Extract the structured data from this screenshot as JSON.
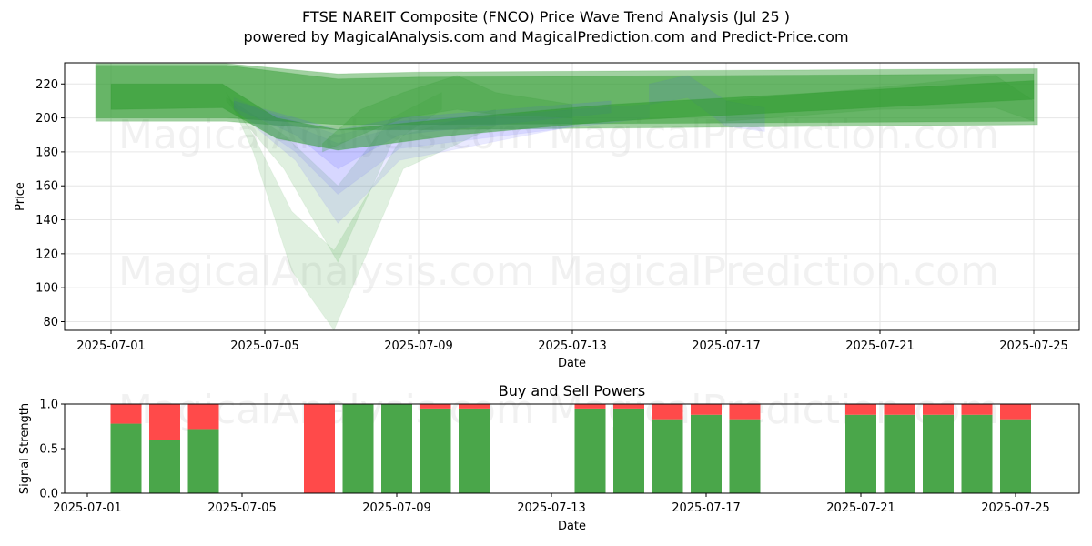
{
  "title": "FTSE NAREIT Composite (FNCO) Price Wave Trend Analysis (Jul 25 )",
  "subtitle": "powered by MagicalAnalysis.com and MagicalPrediction.com and Predict-Price.com",
  "watermarks": [
    "MagicalAnalysis.com",
    "MagicalPrediction.com"
  ],
  "colors": {
    "buy": "#4aa64a",
    "sell": "#ff4a4a",
    "band_green": "#2e9a2e",
    "band_blue": "#5050ff",
    "grid": "#e6e6e6"
  },
  "chart_data": [
    {
      "type": "area",
      "xlabel": "Date",
      "ylabel": "Price",
      "x_ticks": [
        "2025-07-01",
        "2025-07-05",
        "2025-07-09",
        "2025-07-13",
        "2025-07-17",
        "2025-07-21",
        "2025-07-25"
      ],
      "y_ticks": [
        80,
        100,
        120,
        140,
        160,
        180,
        200,
        220
      ],
      "xlim": [
        "2025-06-30",
        "2025-07-26"
      ],
      "ylim": [
        75,
        233
      ],
      "grid": true,
      "series": [
        {
          "color": "green",
          "opacity": 0.45,
          "upper": [
            [
              30.6,
              232
            ],
            [
              34,
              232
            ],
            [
              36.9,
              226
            ],
            [
              39,
              227
            ],
            [
              55.1,
              229
            ]
          ],
          "lower": [
            [
              30.6,
              198
            ],
            [
              34,
              198
            ],
            [
              36.9,
              193
            ],
            [
              39,
              193
            ],
            [
              55.1,
              196
            ]
          ]
        },
        {
          "color": "green",
          "opacity": 0.5,
          "upper": [
            [
              30.6,
              231
            ],
            [
              34,
              231
            ],
            [
              36.9,
              223
            ],
            [
              39,
              224
            ],
            [
              55,
              226
            ]
          ],
          "lower": [
            [
              30.6,
              200
            ],
            [
              34,
              200
            ],
            [
              36.9,
              196
            ],
            [
              39,
              196
            ],
            [
              55,
              198
            ]
          ]
        },
        {
          "color": "green",
          "opacity": 0.15,
          "upper": [
            [
              34,
              215
            ],
            [
              34.7,
              190
            ],
            [
              35.7,
              145
            ],
            [
              36.8,
              122
            ],
            [
              38.6,
              190
            ],
            [
              41,
              205
            ]
          ],
          "lower": [
            [
              34,
              215
            ],
            [
              34.7,
              180
            ],
            [
              35.7,
              110
            ],
            [
              36.8,
              75
            ],
            [
              38.6,
              170
            ],
            [
              41,
              195
            ]
          ]
        },
        {
          "color": "green",
          "opacity": 0.15,
          "upper": [
            [
              34,
              212
            ],
            [
              35.5,
              190
            ],
            [
              36.9,
              160
            ],
            [
              38.3,
              200
            ],
            [
              39.6,
              215
            ]
          ],
          "lower": [
            [
              34,
              210
            ],
            [
              35.5,
              170
            ],
            [
              36.9,
              115
            ],
            [
              38.3,
              185
            ],
            [
              39.6,
              205
            ]
          ]
        },
        {
          "color": "blue",
          "opacity": 0.12,
          "upper": [
            [
              34.2,
              212
            ],
            [
              35.8,
              195
            ],
            [
              36.9,
              185
            ],
            [
              38.5,
              195
            ],
            [
              43,
              205
            ]
          ],
          "lower": [
            [
              34.2,
              205
            ],
            [
              35.8,
              175
            ],
            [
              36.9,
              138
            ],
            [
              38.5,
              175
            ],
            [
              43,
              195
            ]
          ]
        },
        {
          "color": "blue",
          "opacity": 0.12,
          "upper": [
            [
              34.2,
              210
            ],
            [
              35.8,
              198
            ],
            [
              36.9,
              190
            ],
            [
              38.5,
              198
            ],
            [
              45,
              208
            ]
          ],
          "lower": [
            [
              34.2,
              205
            ],
            [
              35.8,
              180
            ],
            [
              36.9,
              155
            ],
            [
              38.5,
              182
            ],
            [
              45,
              200
            ]
          ]
        },
        {
          "color": "blue",
          "opacity": 0.15,
          "upper": [
            [
              34.2,
              210
            ],
            [
              35.8,
              200
            ],
            [
              36.9,
              193
            ],
            [
              38.5,
              200
            ],
            [
              44,
              210
            ]
          ],
          "lower": [
            [
              34.2,
              206
            ],
            [
              35.8,
              190
            ],
            [
              36.9,
              170
            ],
            [
              38.5,
              190
            ],
            [
              44,
              203
            ]
          ]
        },
        {
          "color": "green",
          "opacity": 0.25,
          "upper": [
            [
              36.5,
              185
            ],
            [
              37.5,
              205
            ],
            [
              38.6,
              215
            ],
            [
              40,
              225
            ],
            [
              41,
              215
            ],
            [
              43,
              208
            ]
          ],
          "lower": [
            [
              36.5,
              180
            ],
            [
              37.5,
              190
            ],
            [
              38.6,
              200
            ],
            [
              40,
              205
            ],
            [
              41,
              202
            ],
            [
              43,
              200
            ]
          ]
        },
        {
          "color": "blue",
          "opacity": 0.12,
          "upper": [
            [
              45,
              220
            ],
            [
              46,
              225
            ],
            [
              47,
              210
            ],
            [
              48,
              206
            ]
          ],
          "lower": [
            [
              45,
              208
            ],
            [
              46,
              212
            ],
            [
              47,
              195
            ],
            [
              48,
              192
            ]
          ]
        },
        {
          "color": "green",
          "opacity": 0.2,
          "upper": [
            [
              47,
              210
            ],
            [
              51,
              218
            ],
            [
              54,
              225
            ],
            [
              55,
              210
            ]
          ],
          "lower": [
            [
              47,
              198
            ],
            [
              51,
              205
            ],
            [
              54,
              206
            ],
            [
              55,
              198
            ]
          ]
        },
        {
          "color": "green",
          "opacity": 0.55,
          "upper": [
            [
              31,
              220
            ],
            [
              33.9,
              220
            ],
            [
              35.3,
              200
            ],
            [
              36.9,
              193
            ],
            [
              40,
              200
            ],
            [
              44,
              208
            ],
            [
              55,
              222
            ]
          ],
          "lower": [
            [
              31,
              205
            ],
            [
              33.9,
              206
            ],
            [
              35.3,
              188
            ],
            [
              36.9,
              181
            ],
            [
              40,
              190
            ],
            [
              44,
              198
            ],
            [
              55,
              211
            ]
          ]
        }
      ]
    },
    {
      "type": "bar",
      "title": "Buy and Sell Powers",
      "xlabel": "Date",
      "ylabel": "Signal Strength",
      "x_ticks": [
        "2025-07-01",
        "2025-07-05",
        "2025-07-09",
        "2025-07-13",
        "2025-07-17",
        "2025-07-21",
        "2025-07-25"
      ],
      "y_ticks": [
        "0.0",
        "0.5",
        "1.0"
      ],
      "ylim": [
        0,
        1
      ],
      "categories": [
        "2025-07-02",
        "2025-07-03",
        "2025-07-04",
        "2025-07-07",
        "2025-07-08",
        "2025-07-09",
        "2025-07-10",
        "2025-07-11",
        "2025-07-14",
        "2025-07-15",
        "2025-07-16",
        "2025-07-17",
        "2025-07-18",
        "2025-07-21",
        "2025-07-22",
        "2025-07-23",
        "2025-07-24",
        "2025-07-25"
      ],
      "series": [
        {
          "name": "Buy",
          "values": [
            0.78,
            0.6,
            0.72,
            0.0,
            1.0,
            1.0,
            0.95,
            0.95,
            0.95,
            0.95,
            0.83,
            0.88,
            0.83,
            0.88,
            0.88,
            0.88,
            0.88,
            0.83
          ]
        },
        {
          "name": "Sell",
          "values": [
            0.22,
            0.4,
            0.28,
            1.0,
            0.0,
            0.0,
            0.05,
            0.05,
            0.05,
            0.05,
            0.17,
            0.12,
            0.17,
            0.12,
            0.12,
            0.12,
            0.12,
            0.17
          ]
        }
      ]
    }
  ]
}
